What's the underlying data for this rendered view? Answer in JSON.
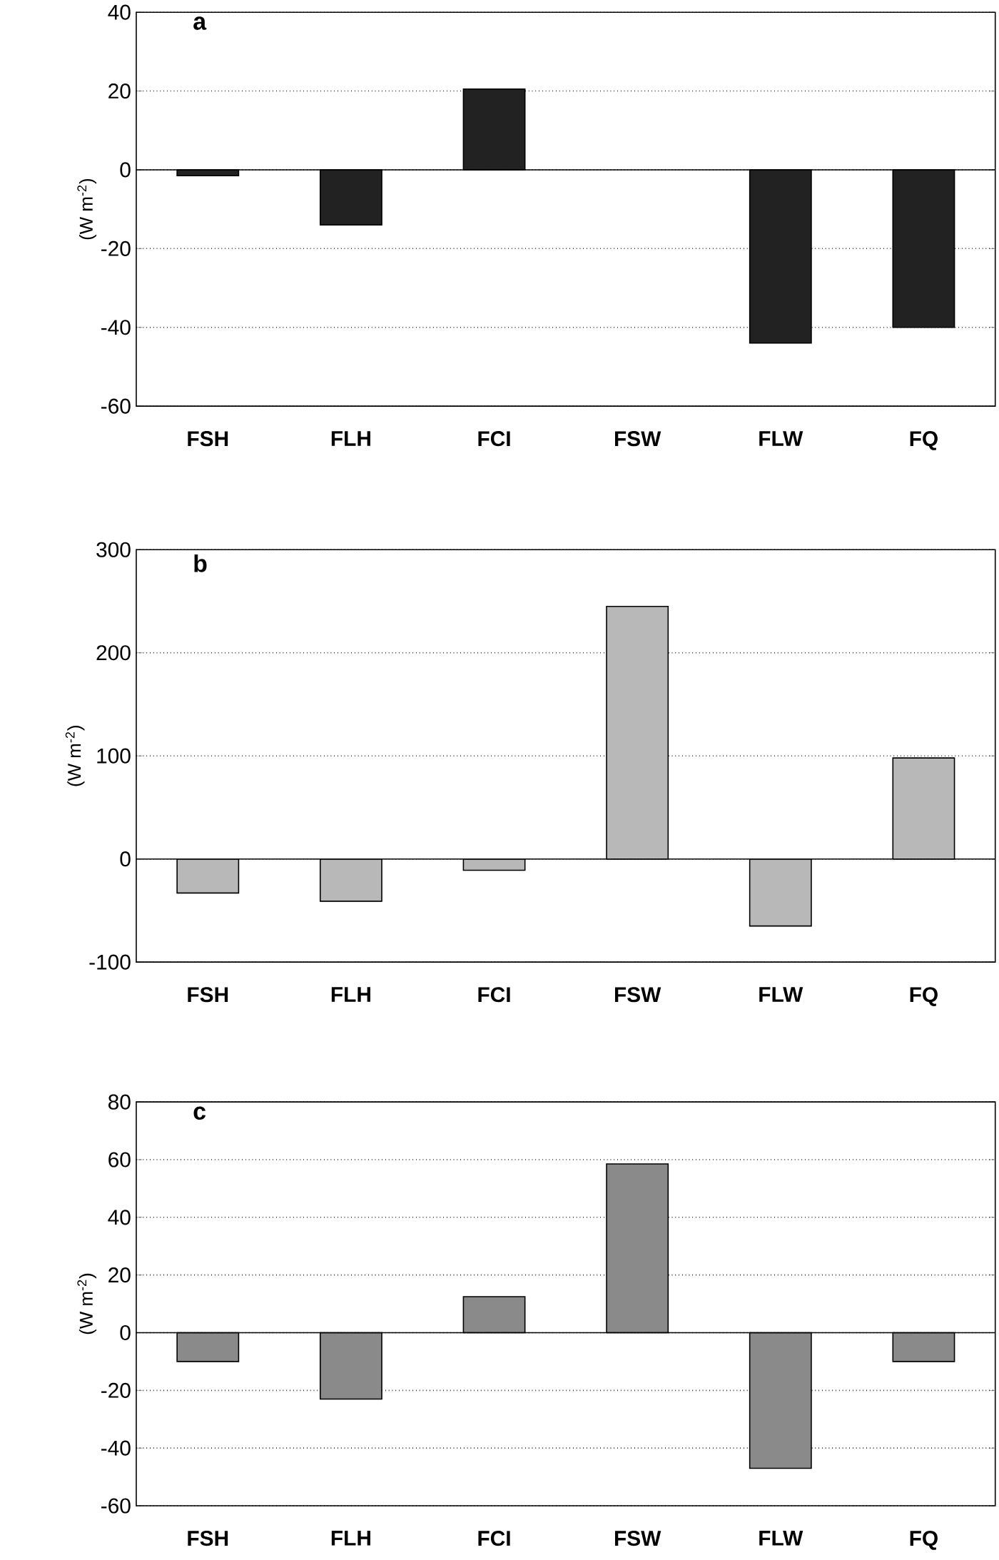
{
  "chart_data": [
    {
      "type": "bar",
      "title": "a",
      "ylabel": "(W m$^{-2}$)",
      "categories": [
        "FSH",
        "FLH",
        "FCI",
        "FSW",
        "FLW",
        "FQ"
      ],
      "values": [
        -1.5,
        -14,
        20.5,
        0,
        -44,
        -40
      ],
      "color": "#222222",
      "ylim": [
        -60,
        40
      ],
      "yticks": [
        -60,
        -40,
        -20,
        0,
        20,
        40
      ],
      "grid": "y"
    },
    {
      "type": "bar",
      "title": "b",
      "ylabel": "(W m$^{-2}$)",
      "categories": [
        "FSH",
        "FLH",
        "FCI",
        "FSW",
        "FLW",
        "FQ"
      ],
      "values": [
        -33,
        -41,
        -11,
        245,
        -65,
        98
      ],
      "color": "#b8b8b8",
      "ylim": [
        -100,
        300
      ],
      "yticks": [
        -100,
        0,
        100,
        200,
        300
      ],
      "grid": "y"
    },
    {
      "type": "bar",
      "title": "c",
      "ylabel": "(W m$^{-2}$)",
      "categories": [
        "FSH",
        "FLH",
        "FCI",
        "FSW",
        "FLW",
        "FQ"
      ],
      "values": [
        -10,
        -23,
        12.5,
        58.5,
        -47,
        -10
      ],
      "color": "#8a8a8a",
      "ylim": [
        -60,
        80
      ],
      "yticks": [
        -60,
        -40,
        -20,
        0,
        20,
        40,
        60,
        80
      ],
      "grid": "y"
    }
  ]
}
